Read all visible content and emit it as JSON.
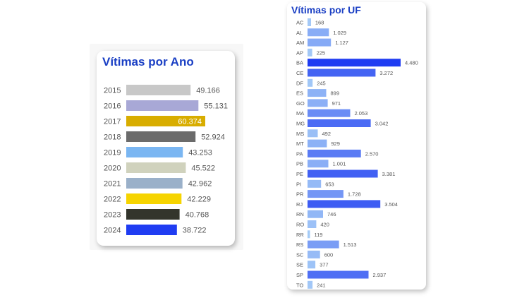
{
  "chart_data": [
    {
      "type": "bar",
      "orientation": "horizontal",
      "title": "Vítimas por Ano",
      "categories": [
        "2015",
        "2016",
        "2017",
        "2018",
        "2019",
        "2020",
        "2021",
        "2022",
        "2023",
        "2024"
      ],
      "values": [
        49166,
        55131,
        60374,
        52924,
        43253,
        45522,
        42962,
        42229,
        40768,
        38722
      ],
      "value_labels": [
        "49.166",
        "55.131",
        "60.374",
        "52.924",
        "43.253",
        "45.522",
        "42.962",
        "42.229",
        "40.768",
        "38.722"
      ],
      "colors": [
        "#c8c8c8",
        "#a8a8d6",
        "#d8ad00",
        "#6b6b6b",
        "#7ab6f2",
        "#d0d2bd",
        "#9ab0c9",
        "#f6d400",
        "#33352c",
        "#1f3cf2"
      ],
      "label_inside": [
        false,
        false,
        true,
        false,
        false,
        false,
        false,
        false,
        false,
        false
      ],
      "xlim": [
        0,
        60374
      ],
      "grid": false
    },
    {
      "type": "bar",
      "orientation": "horizontal",
      "title": "Vítimas por UF",
      "categories": [
        "AC",
        "AL",
        "AM",
        "AP",
        "BA",
        "CE",
        "DF",
        "ES",
        "GO",
        "MA",
        "MG",
        "MS",
        "MT",
        "PA",
        "PB",
        "PE",
        "PI",
        "PR",
        "RJ",
        "RN",
        "RO",
        "RR",
        "RS",
        "SC",
        "SE",
        "SP",
        "TO"
      ],
      "values": [
        168,
        1029,
        1127,
        225,
        4480,
        3272,
        245,
        899,
        971,
        2053,
        3042,
        492,
        929,
        2570,
        1001,
        3381,
        653,
        1728,
        3504,
        746,
        420,
        119,
        1513,
        600,
        377,
        2937,
        241
      ],
      "value_labels": [
        "168",
        "1.029",
        "1.127",
        "225",
        "4.480",
        "3.272",
        "245",
        "899",
        "971",
        "2.053",
        "3.042",
        "492",
        "929",
        "2.570",
        "1.001",
        "3.381",
        "653",
        "1.728",
        "3.504",
        "746",
        "420",
        "119",
        "1.513",
        "600",
        "377",
        "2.937",
        "241"
      ],
      "color_scale": [
        "#a9cff7",
        "#1f3cf2"
      ],
      "xlim": [
        0,
        4480
      ],
      "grid": false
    }
  ]
}
